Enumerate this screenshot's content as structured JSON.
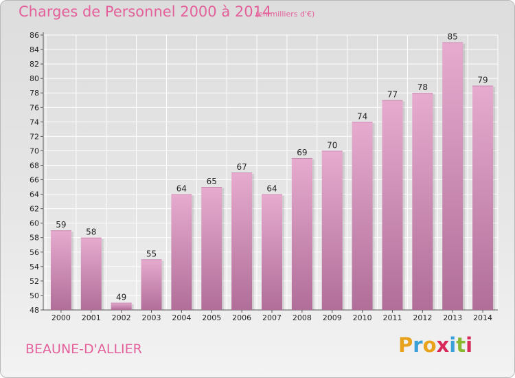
{
  "header": {
    "title": "Charges de Personnel 2000 à 2014",
    "subtitle": "(en milliers d'€)"
  },
  "footer": {
    "commune": "BEAUNE-D'ALLIER",
    "logo_letters": [
      "P",
      "r",
      "o",
      "x",
      "i",
      "t",
      "i"
    ],
    "logo_colors": [
      "#e8a21c",
      "#3aa0d8",
      "#e8a21c",
      "#d82a5a",
      "#3aa0d8",
      "#88b830",
      "#d82a5a"
    ]
  },
  "colors": {
    "accent": "#e4609b",
    "bar_top": "#e7abcf",
    "bar_bottom": "#b06e98"
  },
  "chart_data": {
    "type": "bar",
    "categories": [
      "2000",
      "2001",
      "2002",
      "2003",
      "2004",
      "2005",
      "2006",
      "2007",
      "2008",
      "2009",
      "2010",
      "2011",
      "2012",
      "2013",
      "2014"
    ],
    "values": [
      59,
      58,
      49,
      55,
      64,
      65,
      67,
      64,
      69,
      70,
      74,
      77,
      78,
      85,
      79
    ],
    "ylim": [
      48,
      86
    ],
    "yticks": [
      48,
      50,
      52,
      54,
      56,
      58,
      60,
      62,
      64,
      66,
      68,
      70,
      72,
      74,
      76,
      78,
      80,
      82,
      84,
      86
    ],
    "grid": true,
    "data_labels": true
  }
}
